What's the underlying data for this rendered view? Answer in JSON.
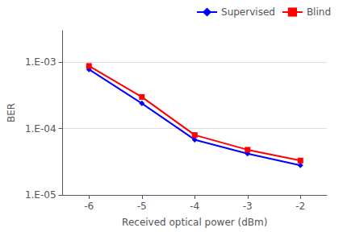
{
  "chart_data": {
    "type": "line",
    "log": "y",
    "x": [
      -6,
      -5,
      -4,
      -3,
      -2
    ],
    "series": [
      {
        "name": "Supervised",
        "color": "#0000ff",
        "marker": "diamond",
        "values": [
          0.00078,
          0.00024,
          6.8e-05,
          4.2e-05,
          2.8e-05
        ]
      },
      {
        "name": "Blind",
        "color": "#ff0000",
        "marker": "square",
        "values": [
          0.00088,
          0.0003,
          8e-05,
          4.8e-05,
          3.3e-05
        ]
      }
    ],
    "xlabel": "Received optical power (dBm)",
    "ylabel": "BER",
    "xlim": [
      -6.5,
      -1.5
    ],
    "xticks": [
      -6,
      -5,
      -4,
      -3,
      -2
    ],
    "ylim": [
      1e-05,
      0.003
    ],
    "yticks": [
      {
        "value": 1e-05,
        "label": "1.E-05"
      },
      {
        "value": 0.0001,
        "label": "1.E-04"
      },
      {
        "value": 0.001,
        "label": "1.E-03"
      }
    ],
    "grid": "y",
    "legend": "upper right"
  }
}
